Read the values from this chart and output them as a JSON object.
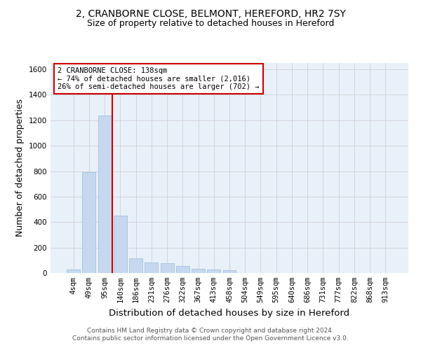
{
  "title_line1": "2, CRANBORNE CLOSE, BELMONT, HEREFORD, HR2 7SY",
  "title_line2": "Size of property relative to detached houses in Hereford",
  "xlabel": "Distribution of detached houses by size in Hereford",
  "ylabel": "Number of detached properties",
  "categories": [
    "4sqm",
    "49sqm",
    "95sqm",
    "140sqm",
    "186sqm",
    "231sqm",
    "276sqm",
    "322sqm",
    "367sqm",
    "413sqm",
    "458sqm",
    "504sqm",
    "549sqm",
    "595sqm",
    "640sqm",
    "686sqm",
    "731sqm",
    "777sqm",
    "822sqm",
    "868sqm",
    "913sqm"
  ],
  "values": [
    25,
    790,
    1240,
    450,
    115,
    80,
    75,
    55,
    35,
    30,
    20,
    0,
    0,
    0,
    0,
    0,
    0,
    0,
    0,
    0,
    0
  ],
  "bar_color": "#c5d8f0",
  "bar_edge_color": "#9bbbd8",
  "vline_color": "#cc0000",
  "annotation_text": "2 CRANBORNE CLOSE: 138sqm\n← 74% of detached houses are smaller (2,016)\n26% of semi-detached houses are larger (702) →",
  "annotation_box_color": "#ffffff",
  "annotation_box_edge_color": "#cc0000",
  "ylim": [
    0,
    1650
  ],
  "yticks": [
    0,
    200,
    400,
    600,
    800,
    1000,
    1200,
    1400,
    1600
  ],
  "grid_color": "#cccccc",
  "background_color": "#e8f0fa",
  "footer_line1": "Contains HM Land Registry data © Crown copyright and database right 2024.",
  "footer_line2": "Contains public sector information licensed under the Open Government Licence v3.0.",
  "title_fontsize": 10,
  "subtitle_fontsize": 9,
  "axis_label_fontsize": 9,
  "tick_fontsize": 7.5,
  "annotation_fontsize": 7.5
}
